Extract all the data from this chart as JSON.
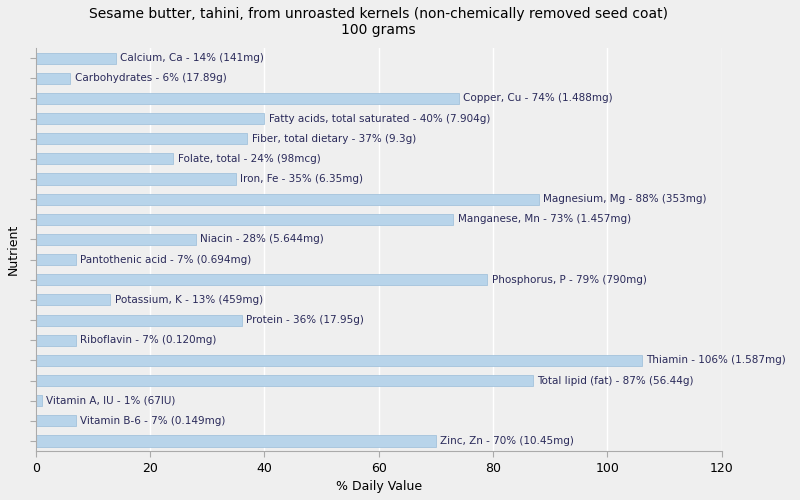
{
  "title": "Sesame butter, tahini, from unroasted kernels (non-chemically removed seed coat)\n100 grams",
  "xlabel": "% Daily Value",
  "ylabel": "Nutrient",
  "bar_color": "#b8d4ea",
  "bar_edge_color": "#9abcd8",
  "background_color": "#efefef",
  "xlim": [
    0,
    120
  ],
  "xticks": [
    0,
    20,
    40,
    60,
    80,
    100,
    120
  ],
  "nutrients": [
    {
      "label": "Calcium, Ca - 14% (141mg)",
      "value": 14
    },
    {
      "label": "Carbohydrates - 6% (17.89g)",
      "value": 6
    },
    {
      "label": "Copper, Cu - 74% (1.488mg)",
      "value": 74
    },
    {
      "label": "Fatty acids, total saturated - 40% (7.904g)",
      "value": 40
    },
    {
      "label": "Fiber, total dietary - 37% (9.3g)",
      "value": 37
    },
    {
      "label": "Folate, total - 24% (98mcg)",
      "value": 24
    },
    {
      "label": "Iron, Fe - 35% (6.35mg)",
      "value": 35
    },
    {
      "label": "Magnesium, Mg - 88% (353mg)",
      "value": 88
    },
    {
      "label": "Manganese, Mn - 73% (1.457mg)",
      "value": 73
    },
    {
      "label": "Niacin - 28% (5.644mg)",
      "value": 28
    },
    {
      "label": "Pantothenic acid - 7% (0.694mg)",
      "value": 7
    },
    {
      "label": "Phosphorus, P - 79% (790mg)",
      "value": 79
    },
    {
      "label": "Potassium, K - 13% (459mg)",
      "value": 13
    },
    {
      "label": "Protein - 36% (17.95g)",
      "value": 36
    },
    {
      "label": "Riboflavin - 7% (0.120mg)",
      "value": 7
    },
    {
      "label": "Thiamin - 106% (1.587mg)",
      "value": 106
    },
    {
      "label": "Total lipid (fat) - 87% (56.44g)",
      "value": 87
    },
    {
      "label": "Vitamin A, IU - 1% (67IU)",
      "value": 1
    },
    {
      "label": "Vitamin B-6 - 7% (0.149mg)",
      "value": 7
    },
    {
      "label": "Zinc, Zn - 70% (10.45mg)",
      "value": 70
    }
  ],
  "text_color": "#2a2a5a",
  "title_fontsize": 10,
  "label_fontsize": 7.5,
  "tick_fontsize": 9,
  "axis_label_fontsize": 9,
  "bar_height": 0.55,
  "grid_color": "#ffffff",
  "spine_color": "#aaaaaa"
}
